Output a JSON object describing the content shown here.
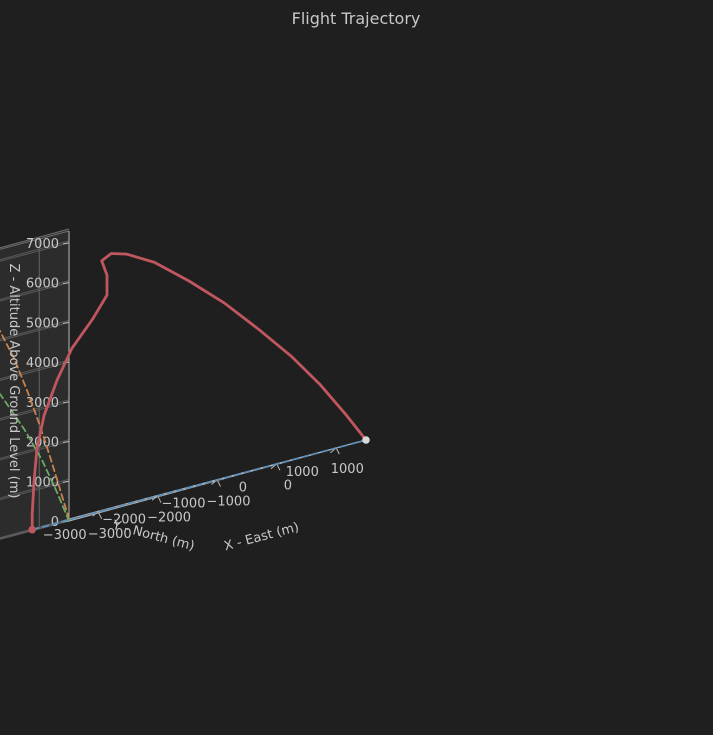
{
  "chart_data": {
    "type": "line",
    "title": "Flight Trajectory",
    "xlabel": "X - East (m)",
    "ylabel": "Y - North (m)",
    "zlabel": "Z - Altitude Above Ground Level (m)",
    "x_ticks": [
      "−3000",
      "−2000",
      "−1000",
      "0",
      "1000"
    ],
    "y_ticks": [
      "−3000",
      "−2000",
      "−1000",
      "0",
      "1000"
    ],
    "z_ticks": [
      "0",
      "1000",
      "2000",
      "3000",
      "4000",
      "5000",
      "6000",
      "7000"
    ],
    "xlim": [
      -3500,
      1500
    ],
    "ylim": [
      -3500,
      1500
    ],
    "zlim": [
      0,
      7300
    ],
    "grid": true,
    "colors": {
      "background": "#1f1f1f",
      "trajectory": "#c0575f",
      "projection_xz": "#c9834a",
      "projection_yz": "#6aaa64",
      "projection_xy": "#5b8fba",
      "launch_marker": "#d9d9d9",
      "impact_marker": "#c0575f"
    },
    "series": [
      {
        "style": "solid",
        "color_key": "trajectory",
        "points": [
          [
            1500,
            1500,
            0
          ],
          [
            1350,
            1300,
            800
          ],
          [
            1180,
            1050,
            1700
          ],
          [
            1000,
            750,
            2600
          ],
          [
            800,
            400,
            3500
          ],
          [
            580,
            40,
            4400
          ],
          [
            340,
            -320,
            5200
          ],
          [
            80,
            -640,
            5900
          ],
          [
            -150,
            -880,
            6300
          ],
          [
            -300,
            -990,
            6420
          ],
          [
            -400,
            -1050,
            6300
          ],
          [
            -360,
            -1000,
            5900
          ],
          [
            -330,
            -1030,
            5400
          ],
          [
            -400,
            -1200,
            4900
          ],
          [
            -520,
            -1430,
            4300
          ],
          [
            -620,
            -1580,
            3600
          ],
          [
            -700,
            -1720,
            2800
          ],
          [
            -740,
            -1800,
            2000
          ],
          [
            -760,
            -1830,
            1200
          ],
          [
            -770,
            -1850,
            400
          ],
          [
            -770,
            -1850,
            0
          ]
        ]
      }
    ],
    "projections": [
      {
        "plane": "xz",
        "color_key": "projection_xz",
        "style": "dashed"
      },
      {
        "plane": "yz",
        "color_key": "projection_yz",
        "style": "dashed"
      },
      {
        "plane": "xy",
        "color_key": "projection_xy",
        "style": "dashed"
      }
    ],
    "markers": [
      {
        "name": "launch",
        "x": 1500,
        "y": 1500,
        "z": 0,
        "color_key": "launch_marker"
      },
      {
        "name": "impact",
        "x": -770,
        "y": -1850,
        "z": 0,
        "color_key": "impact_marker"
      }
    ]
  }
}
